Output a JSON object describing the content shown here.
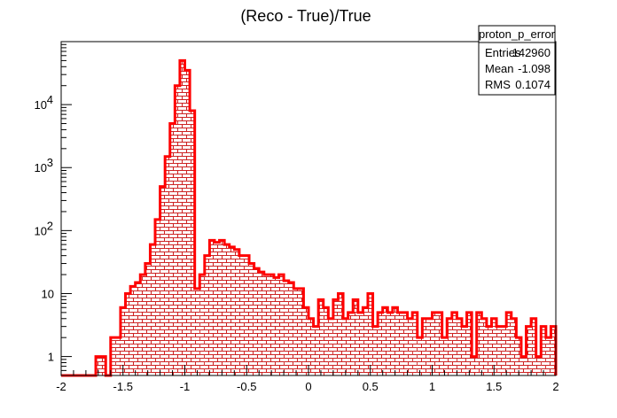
{
  "chart_data": {
    "type": "bar",
    "title": "(Reco - True)/True",
    "xlabel": "",
    "ylabel": "",
    "yscale": "log",
    "xlim": [
      -2,
      2
    ],
    "ylim": [
      0.5,
      100000
    ],
    "x_ticks": [
      "-2",
      "-1.5",
      "-1",
      "-0.5",
      "0",
      "0.5",
      "1",
      "1.5",
      "2"
    ],
    "x_tick_values": [
      -2,
      -1.5,
      -1,
      -0.5,
      0,
      0.5,
      1,
      1.5,
      2
    ],
    "y_ticks": [
      {
        "value": 1,
        "label": "1"
      },
      {
        "value": 10,
        "label": "10"
      },
      {
        "value": 100,
        "label": "10",
        "exp": "2"
      },
      {
        "value": 1000,
        "label": "10",
        "exp": "3"
      },
      {
        "value": 10000,
        "label": "10",
        "exp": "4"
      }
    ],
    "bin_low": -2,
    "bin_width": 0.04,
    "values": [
      0,
      0,
      0,
      0,
      0,
      0,
      0,
      1,
      1,
      0,
      2,
      2,
      6,
      10,
      13,
      15,
      20,
      30,
      60,
      150,
      500,
      1500,
      5000,
      20000,
      50000,
      35000,
      8000,
      12,
      20,
      40,
      70,
      65,
      70,
      60,
      55,
      50,
      40,
      40,
      30,
      25,
      22,
      20,
      20,
      18,
      20,
      16,
      15,
      12,
      12,
      6,
      4,
      3,
      8,
      6,
      4,
      8,
      10,
      4,
      5,
      8,
      5,
      6,
      10,
      3,
      5,
      6,
      5,
      6,
      5,
      5,
      4,
      5,
      2,
      4,
      4,
      5,
      5,
      2,
      4,
      5,
      4,
      3,
      5,
      1,
      5,
      4,
      3,
      4,
      3,
      3,
      5,
      4,
      2,
      1,
      3,
      4,
      1,
      3,
      2,
      3
    ],
    "stats": {
      "name": "proton_p_error",
      "rows": [
        {
          "label": "Entries",
          "value": "142960"
        },
        {
          "label": "Mean",
          "value": "-1.098"
        },
        {
          "label": "RMS",
          "value": "0.1074"
        }
      ]
    },
    "colors": {
      "line": "#ff0000",
      "hatch": "#cc2222",
      "frame": "#000000"
    },
    "fill_pattern": "brick-hatch",
    "grid": false
  }
}
